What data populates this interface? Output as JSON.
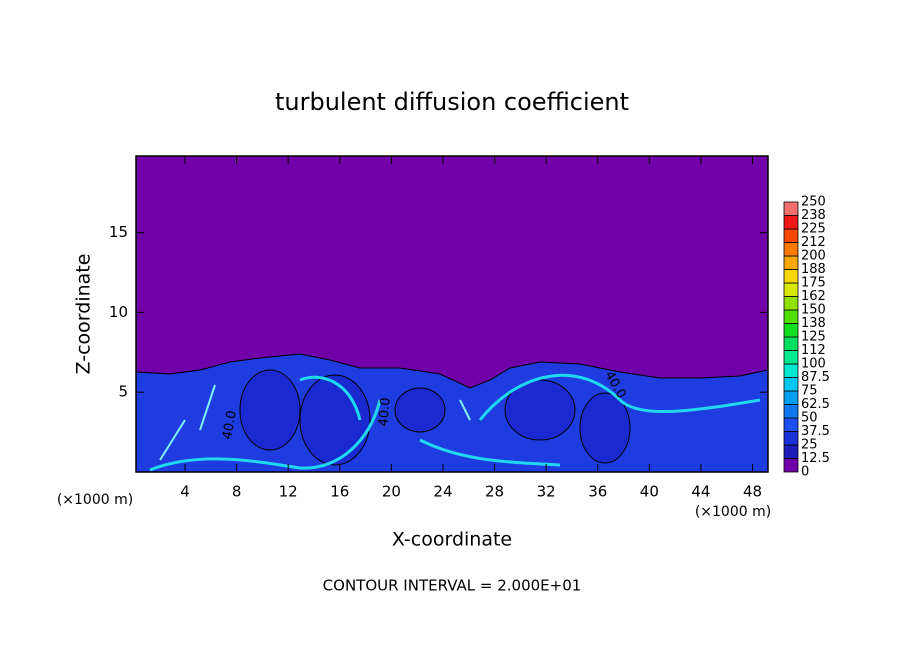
{
  "chart_data": {
    "type": "contour",
    "title": "turbulent diffusion coefficient",
    "x_label": "X-coordinate",
    "y_label": "Z-coordinate",
    "x_unit": "(×1000 m)",
    "footer": "CONTOUR INTERVAL = 2.000E+01",
    "xlim": [
      0.2,
      49.2
    ],
    "ylim": [
      0,
      19.8
    ],
    "xticks": [
      4,
      8,
      12,
      16,
      20,
      24,
      28,
      32,
      36,
      40,
      44,
      48
    ],
    "yticks": [
      5,
      10,
      15
    ],
    "contour_labels": [
      "40.0",
      "40.0",
      "40.0"
    ],
    "colorbar": {
      "levels": [
        0,
        12.5,
        25,
        37.5,
        50,
        62.5,
        75,
        87.5,
        100,
        {
          "value": 112.5,
          "label": "112"
        },
        125,
        {
          "value": 137.5,
          "label": "138"
        },
        150,
        {
          "value": 162.5,
          "label": "162"
        },
        175,
        {
          "value": 187.5,
          "label": "188"
        },
        200,
        {
          "value": 212.5,
          "label": "212"
        },
        225,
        {
          "value": 237.5,
          "label": "238"
        },
        250
      ],
      "colors": [
        "#7000a8",
        "#1c1cb8",
        "#1a30d8",
        "#1a50f0",
        "#1078f0",
        "#00a0f0",
        "#00c8f0",
        "#00e8d0",
        "#00e890",
        "#00e060",
        "#10e020",
        "#50e000",
        "#90e000",
        "#d8e800",
        "#f8d800",
        "#f8a800",
        "#f87800",
        "#f84800",
        "#f01818",
        "#f07070"
      ]
    }
  }
}
